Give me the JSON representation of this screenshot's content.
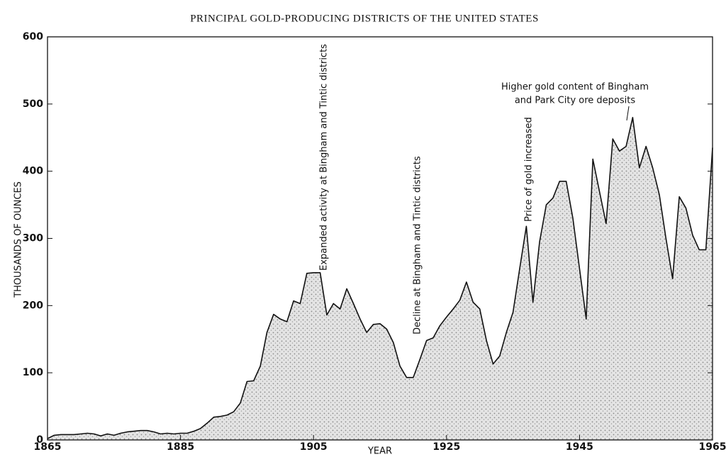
{
  "chart_data": {
    "type": "area",
    "title": "PRINCIPAL GOLD-PRODUCING DISTRICTS OF THE UNITED STATES",
    "xlabel": "YEAR",
    "ylabel": "THOUSANDS OF OUNCES",
    "color": "#111111",
    "fill": "#c9c9c9",
    "x": [
      1865,
      1866,
      1867,
      1868,
      1869,
      1870,
      1871,
      1872,
      1873,
      1874,
      1875,
      1876,
      1877,
      1878,
      1879,
      1880,
      1881,
      1882,
      1883,
      1884,
      1885,
      1886,
      1887,
      1888,
      1889,
      1890,
      1891,
      1892,
      1893,
      1894,
      1895,
      1896,
      1897,
      1898,
      1899,
      1900,
      1901,
      1902,
      1903,
      1904,
      1905,
      1906,
      1907,
      1908,
      1909,
      1910,
      1911,
      1912,
      1913,
      1914,
      1915,
      1916,
      1917,
      1918,
      1919,
      1920,
      1921,
      1922,
      1923,
      1924,
      1925,
      1926,
      1927,
      1928,
      1929,
      1930,
      1931,
      1932,
      1933,
      1934,
      1935,
      1936,
      1937,
      1938,
      1939,
      1940,
      1941,
      1942,
      1943,
      1944,
      1945,
      1946,
      1947,
      1948,
      1949,
      1950,
      1951,
      1952,
      1953,
      1954,
      1955,
      1956,
      1957,
      1958,
      1959,
      1960,
      1961,
      1962,
      1963,
      1964,
      1965
    ],
    "values": [
      2,
      7,
      8,
      8,
      8,
      9,
      10,
      9,
      6,
      9,
      7,
      10,
      12,
      13,
      14,
      14,
      12,
      9,
      10,
      9,
      10,
      10,
      13,
      17,
      25,
      34,
      35,
      37,
      42,
      55,
      87,
      88,
      110,
      160,
      187,
      180,
      176,
      207,
      203,
      248,
      249,
      249,
      186,
      203,
      195,
      225,
      203,
      180,
      160,
      172,
      173,
      165,
      145,
      110,
      93,
      93,
      120,
      148,
      152,
      170,
      183,
      195,
      208,
      235,
      205,
      195,
      148,
      113,
      125,
      160,
      190,
      255,
      318,
      205,
      295,
      350,
      360,
      385,
      385,
      330,
      255,
      180,
      418,
      370,
      322,
      448,
      430,
      437,
      480,
      405,
      437,
      405,
      365,
      300,
      240,
      362,
      345,
      305,
      283,
      283,
      435
    ],
    "xlim": [
      1865,
      1965
    ],
    "xticks": [
      1865,
      1885,
      1905,
      1925,
      1945,
      1965
    ],
    "ylim": [
      0,
      600
    ],
    "yticks": [
      0,
      100,
      200,
      300,
      400,
      500,
      600
    ],
    "annotations": [
      {
        "text": "Expanded activity at Bingham and Tintic districts"
      },
      {
        "text": "Decline at Bingham and Tintic districts"
      },
      {
        "text": "Price of gold increased"
      },
      {
        "lines": [
          "Higher gold content of Bingham",
          "and Park City ore deposits"
        ]
      }
    ]
  }
}
